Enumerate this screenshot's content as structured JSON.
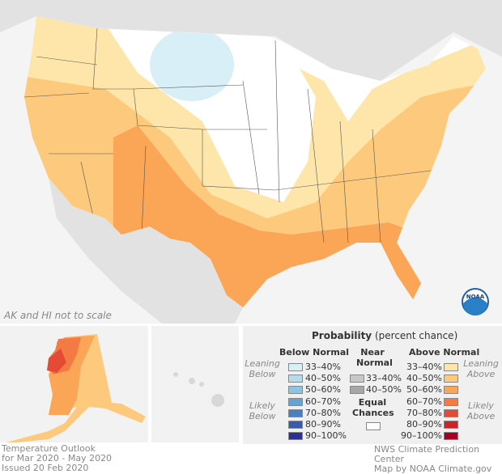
{
  "map_note": "AK and HI not to scale",
  "legend": {
    "title_bold": "Probability",
    "title_rest": "(percent chance)",
    "below_header": "Below Normal",
    "near_header_1": "Near",
    "near_header_2": "Normal",
    "above_header": "Above Normal",
    "leaning_below": [
      "Leaning",
      "Below"
    ],
    "likely_below": [
      "Likely",
      "Below"
    ],
    "leaning_above": [
      "Leaning",
      "Above"
    ],
    "likely_above": [
      "Likely",
      "Above"
    ],
    "equal_chances": [
      "Equal",
      "Chances"
    ],
    "below": [
      {
        "label": "33–40%",
        "color": "#d9eff7"
      },
      {
        "label": "40–50%",
        "color": "#b3dcec"
      },
      {
        "label": "50–60%",
        "color": "#8ec4e0"
      },
      {
        "label": "60–70%",
        "color": "#67a3cf"
      },
      {
        "label": "70–80%",
        "color": "#4a80c2"
      },
      {
        "label": "80–90%",
        "color": "#3a5aaa"
      },
      {
        "label": "90–100%",
        "color": "#2c3190"
      }
    ],
    "near": [
      {
        "label": "33–40%",
        "color": "#c8c8c8"
      },
      {
        "label": "40–50%",
        "color": "#a6a6a6"
      }
    ],
    "above": [
      {
        "label": "33–40%",
        "color": "#fee6ab"
      },
      {
        "label": "40–50%",
        "color": "#fdc97c"
      },
      {
        "label": "50–60%",
        "color": "#fba557"
      },
      {
        "label": "60–70%",
        "color": "#f47a45"
      },
      {
        "label": "70–80%",
        "color": "#e34b34"
      },
      {
        "label": "80–90%",
        "color": "#cd2327"
      },
      {
        "label": "90–100%",
        "color": "#a50026"
      }
    ]
  },
  "title_lines": [
    "Temperature Outlook",
    "for Mar 2020 - May 2020",
    "Issued 20 Feb 2020"
  ],
  "credit_lines": [
    "NWS Climate Prediction Center",
    "Map by NOAA Climate.gov"
  ],
  "logo_text": "NOAA"
}
